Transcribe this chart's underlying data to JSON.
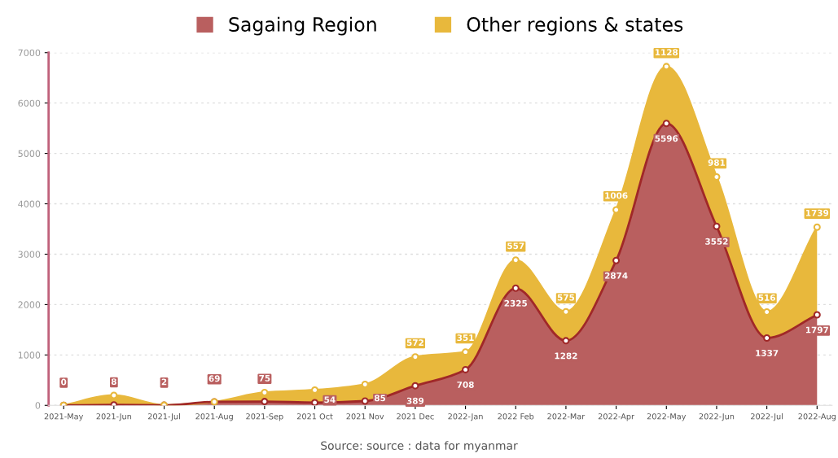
{
  "chart_data": {
    "type": "area",
    "stacked": true,
    "categories": [
      "2021-May",
      "2021-Jun",
      "2021-Jul",
      "2021-Aug",
      "2021-Sep",
      "2021 Oct",
      "2021 Nov",
      "2021 Dec",
      "2022-Jan",
      "2022 Feb",
      "2022-Mar",
      "2022-Apr",
      "2022-May",
      "2022-Jun",
      "2022-Jul",
      "2022-Aug"
    ],
    "series": [
      {
        "name": "Sagaing Region",
        "color": "#b95f5f",
        "values": [
          0,
          8,
          2,
          69,
          75,
          54,
          85,
          389,
          708,
          2325,
          1282,
          2874,
          5596,
          3552,
          1337,
          1797
        ],
        "value_labels": [
          "0",
          "8",
          "2",
          "69",
          "75",
          "54",
          "85",
          "389",
          "708",
          "2325",
          "1282",
          "2874",
          "5596",
          "3552",
          "1337",
          "1797"
        ]
      },
      {
        "name": "Other regions & states",
        "color": "#e8b83c",
        "values": [
          0,
          190,
          0,
          0,
          180,
          250,
          330,
          572,
          351,
          557,
          575,
          1006,
          1128,
          981,
          516,
          1739
        ],
        "value_labels": [
          null,
          null,
          null,
          null,
          null,
          null,
          null,
          "572",
          "351",
          "557",
          "575",
          "1006",
          "1128",
          "981",
          "516",
          "1739"
        ]
      }
    ],
    "ylim": [
      0,
      7000
    ],
    "yticks": [
      0,
      1000,
      2000,
      3000,
      4000,
      5000,
      6000,
      7000
    ],
    "grid": "y",
    "legend": "top",
    "marker": "circle",
    "line_style": "solid",
    "annotations": [
      "Source: source : data for myanmar"
    ]
  }
}
